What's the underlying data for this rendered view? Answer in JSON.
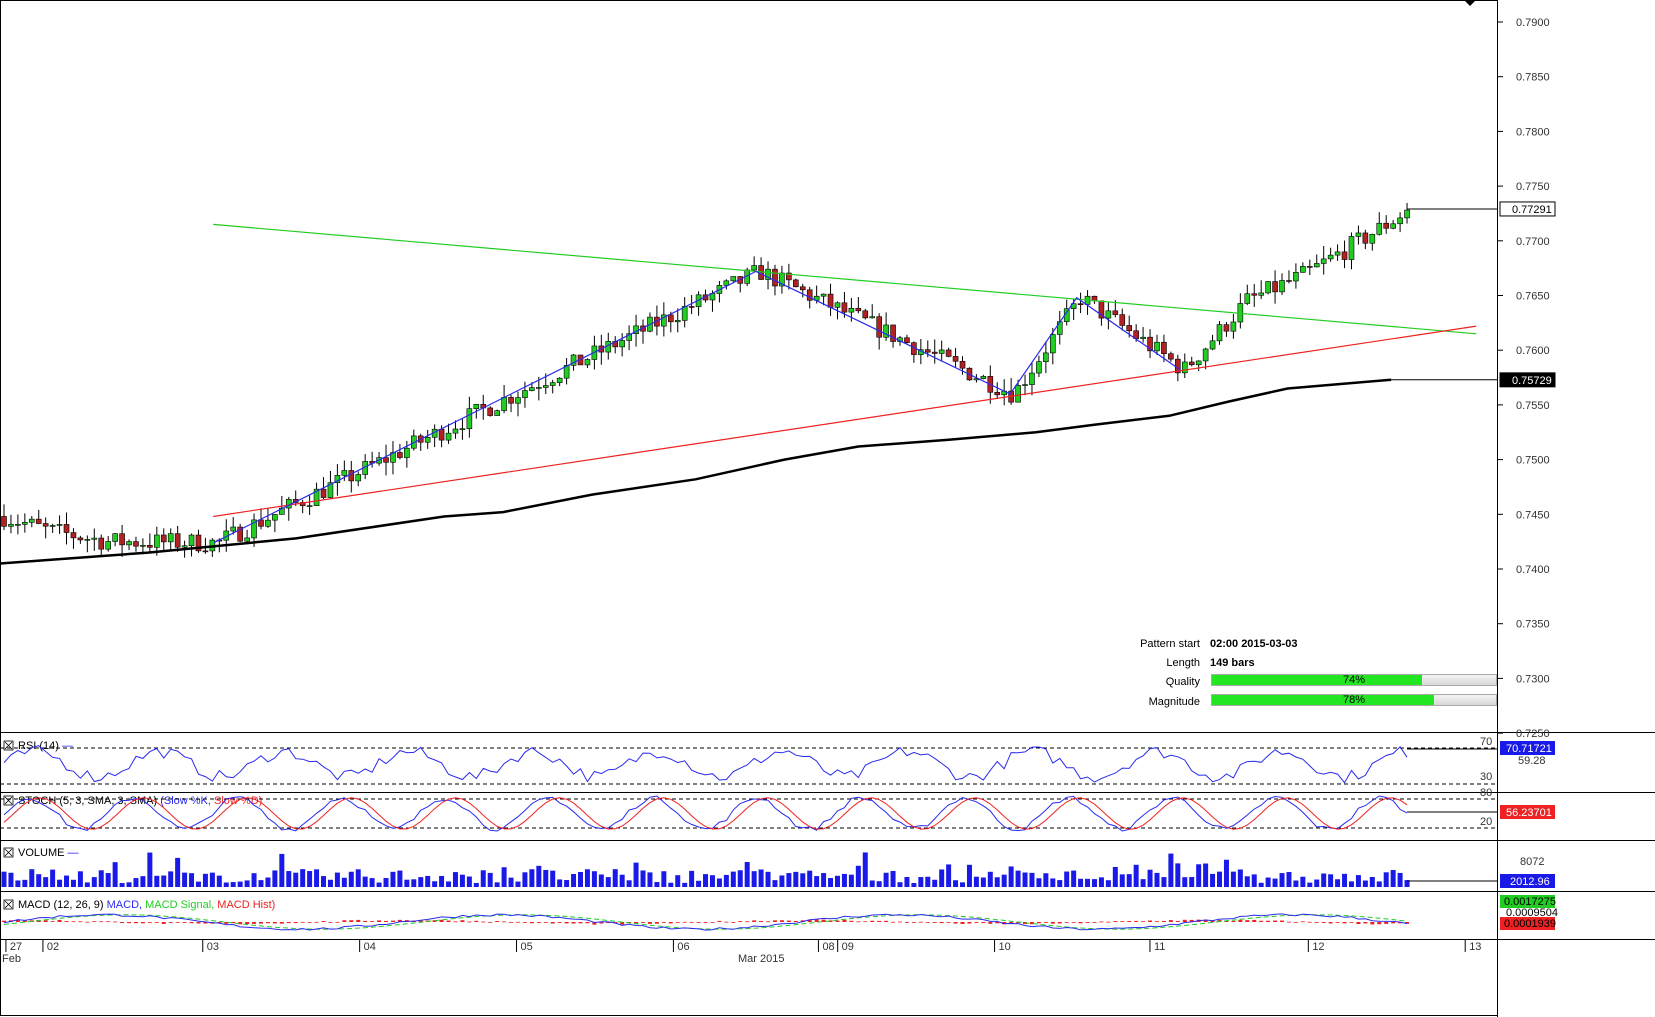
{
  "chart_data": {
    "type": "candlestick",
    "main": {
      "price_axis": {
        "min": 0.725,
        "max": 0.79,
        "ticks": [
          "0.7900",
          "0.7850",
          "0.7800",
          "0.7750",
          "0.7700",
          "0.7650",
          "0.7600",
          "0.7550",
          "0.7500",
          "0.7450",
          "0.7400",
          "0.7350",
          "0.7300",
          "0.7250"
        ]
      },
      "last_price": "0.77291",
      "ma_value": "0.75729",
      "start_price": 0.7435,
      "end_price": 0.7728,
      "bars": 203,
      "pattern_points": [
        {
          "x": 0.1445,
          "y": 0.7424
        },
        {
          "x": 0.5108,
          "y": 0.7672
        },
        {
          "x": 0.6825,
          "y": 0.756
        },
        {
          "x": 0.7275,
          "y": 0.7648
        },
        {
          "x": 0.7975,
          "y": 0.7582
        }
      ],
      "resistance": {
        "x1": 0.144,
        "y1": 0.7715,
        "x2": 0.9975,
        "y2": 0.7615
      },
      "support": {
        "x1": 0.144,
        "y1": 0.7448,
        "x2": 0.9975,
        "y2": 0.7622
      },
      "moving_average": [
        [
          0.0,
          0.7405
        ],
        [
          0.1,
          0.7415
        ],
        [
          0.2,
          0.7428
        ],
        [
          0.3,
          0.7448
        ],
        [
          0.34,
          0.7452
        ],
        [
          0.4,
          0.7468
        ],
        [
          0.47,
          0.7482
        ],
        [
          0.53,
          0.75
        ],
        [
          0.58,
          0.7512
        ],
        [
          0.64,
          0.7518
        ],
        [
          0.7,
          0.7525
        ],
        [
          0.74,
          0.7532
        ],
        [
          0.79,
          0.754
        ],
        [
          0.83,
          0.7553
        ],
        [
          0.87,
          0.7565
        ],
        [
          0.94,
          0.7573
        ]
      ]
    },
    "pattern_info": {
      "pattern_start_label": "Pattern start",
      "pattern_start_value": "02:00 2015-03-03",
      "length_label": "Length",
      "length_value": "149 bars",
      "quality_label": "Quality",
      "quality_value": 74,
      "quality_text": "74%",
      "magnitude_label": "Magnitude",
      "magnitude_value": 78,
      "magnitude_text": "78%"
    },
    "indicators": {
      "rsi": {
        "title": "RSI (14)",
        "levels": [
          "70",
          "30"
        ],
        "value": "70.71721",
        "mid_value": "59.28"
      },
      "stoch": {
        "title_prefix": "STOCH (5, 3, SMA, 3, SMA)",
        "series": [
          "Slow %K",
          "Slow %D"
        ],
        "levels": [
          "80",
          "20"
        ],
        "value": "56.23701"
      },
      "volume": {
        "title": "VOLUME",
        "max_label": "8072",
        "value": "2012.96"
      },
      "macd": {
        "title_prefix": "MACD (12, 26, 9)",
        "series": [
          "MACD",
          "MACD Signal",
          "MACD Hist"
        ],
        "value_macd": "0.0017275",
        "value_signal": "0.0009504",
        "value_hist": "0.0001939"
      }
    },
    "x_axis": {
      "labels": [
        {
          "text": "27",
          "x": 0.004
        },
        {
          "text": "02",
          "x": 0.029
        },
        {
          "text": "03",
          "x": 0.137
        },
        {
          "text": "04",
          "x": 0.243
        },
        {
          "text": "05",
          "x": 0.349
        },
        {
          "text": "06",
          "x": 0.455
        },
        {
          "text": "08",
          "x": 0.553
        },
        {
          "text": "09",
          "x": 0.566
        },
        {
          "text": "10",
          "x": 0.672
        },
        {
          "text": "11",
          "x": 0.777
        },
        {
          "text": "12",
          "x": 0.884
        },
        {
          "text": "13",
          "x": 0.99
        }
      ],
      "month_left": "Feb",
      "month_center": "Mar 2015"
    },
    "colors": {
      "up": "#22cc22",
      "down": "#b22222",
      "pattern": "#2a2aee",
      "resistance": "#22cc22",
      "support": "#ee2222",
      "ma": "#000000",
      "rsi": "#2a2aee",
      "stoch_k": "#2a2aee",
      "stoch_d": "#ee2222",
      "volume": "#1a1ae8",
      "macd": "#2a2aee",
      "macd_signal": "#22cc22",
      "macd_hist": "#ee2222"
    }
  }
}
